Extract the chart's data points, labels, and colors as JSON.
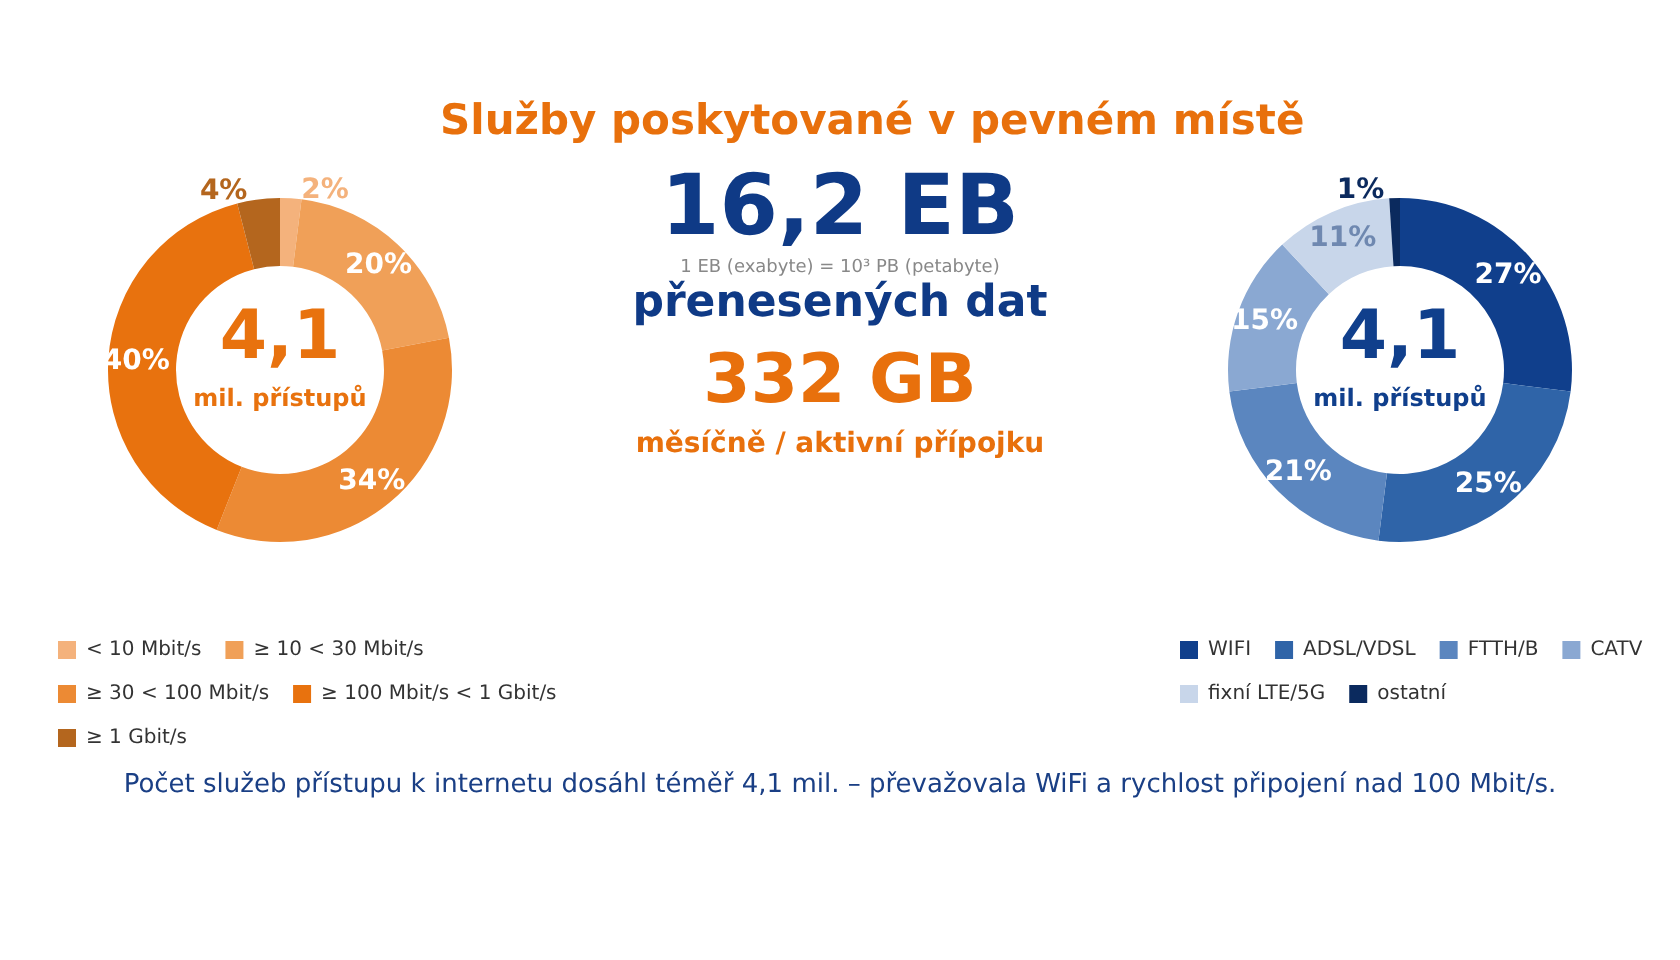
{
  "chart_data": [
    {
      "type": "donut",
      "categories": [
        "< 10 Mbit/s",
        "≥ 10 < 30 Mbit/s",
        "≥ 30 < 100 Mbit/s",
        "≥ 100 Mbit/s < 1 Gbit/s",
        "≥ 1 Gbit/s"
      ],
      "values": [
        2,
        20,
        34,
        40,
        4
      ],
      "colors": [
        "#f4b27c",
        "#f0a058",
        "#ec8a34",
        "#e8720e",
        "#b4661e"
      ],
      "value_labels": [
        "2%",
        "20%",
        "34%",
        "40%",
        "4%"
      ],
      "annotations": [
        "4,1",
        "mil. přístupů"
      ],
      "legend": "bottom"
    },
    {
      "type": "other",
      "title": "Služby poskytované v pevném místě",
      "annotations": [
        "16,2 EB",
        "1 EB (exabyte) = 10³ PB (petabyte)",
        "přenesených dat",
        "332 GB",
        "měsíčně / aktivní přípojku",
        "Počet služeb přístupu k internetu dosáhl téměř 4,1 mil. – převažovala WiFi a rychlost připojení nad 100 Mbit/s."
      ]
    },
    {
      "type": "donut",
      "categories": [
        "WIFI",
        "ADSL/VDSL",
        "FTTH/B",
        "CATV",
        "fixní LTE/5G",
        "ostatní"
      ],
      "values": [
        27,
        25,
        21,
        15,
        11,
        1
      ],
      "colors": [
        "#103f8c",
        "#2f64a8",
        "#5b86bf",
        "#8aa8d2",
        "#c8d6ea",
        "#0b2a5e"
      ],
      "value_labels": [
        "27%",
        "25%",
        "21%",
        "15%",
        "11%",
        "1%"
      ],
      "annotations": [
        "4,1",
        "mil. přístupů"
      ],
      "legend": "bottom"
    }
  ]
}
